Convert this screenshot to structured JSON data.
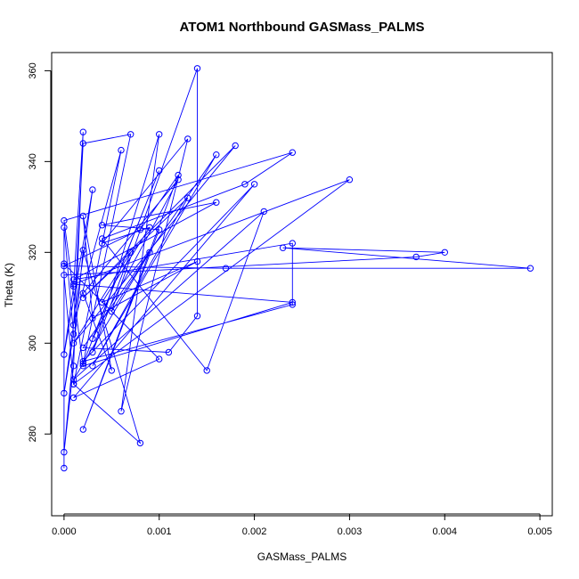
{
  "chart_data": {
    "type": "line",
    "title": "ATOM1 Northbound GASMass_PALMS",
    "xlabel": "GASMass_PALMS",
    "ylabel": "Theta (K)",
    "xlim": [
      -0.00013,
      0.00513
    ],
    "ylim": [
      262,
      364
    ],
    "x_ticks": [
      "0.000",
      "0.001",
      "0.002",
      "0.003",
      "0.004",
      "0.005"
    ],
    "x_tick_values": [
      0,
      0.001,
      0.002,
      0.003,
      0.004,
      0.005
    ],
    "y_ticks": [
      "280",
      "300",
      "320",
      "340",
      "360"
    ],
    "y_tick_values": [
      280,
      300,
      320,
      340,
      360
    ],
    "grid": false,
    "legend": "none",
    "color": "#0000ff",
    "series": [
      {
        "x": [
          0.0,
          0.0,
          0.0001,
          0.0,
          0.0003,
          0.0,
          0.0001,
          0.0002,
          0.0001,
          0.0,
          0.0002,
          0.0008,
          0.0001,
          0.0006,
          0.0001,
          0.0002,
          0.0007,
          0.0002,
          0.001,
          0.0003,
          0.0012,
          0.0002,
          0.0005,
          0.0002,
          0.0003,
          0.0014,
          0.0004,
          0.0009,
          0.0004,
          0.0013,
          0.0006,
          0.001,
          0.0003,
          0.0007,
          0.0001,
          0.0018,
          0.0002,
          0.0013,
          0.0003,
          0.0016,
          0.0002,
          0.0011,
          0.0014,
          0.0014,
          0.0005,
          0.0009,
          0.0001,
          0.0021,
          0.0015,
          0.0004,
          0.0019,
          0.0024,
          0.0,
          0.0002,
          0.0024,
          0.0001,
          0.003,
          0.0001,
          0.0,
          0.0037,
          0.004,
          0.0023,
          0.0049,
          0.0017,
          0.0,
          0.0008,
          0.0012,
          0.0002,
          0.001,
          0.0004,
          0.0016,
          0.0001,
          0.0024,
          0.0024,
          0.0002,
          0.002,
          0.0001,
          0.001,
          0.0
        ],
        "y": [
          272.5,
          325.5,
          302.0,
          289.0,
          333.8,
          297.5,
          312.5,
          346.5,
          295.0,
          276.0,
          320.5,
          278.0,
          291.0,
          342.5,
          304.0,
          344.0,
          346.0,
          295.5,
          338.0,
          301.0,
          336.0,
          311.0,
          294.0,
          328.0,
          305.5,
          318.0,
          309.0,
          325.5,
          322.0,
          345.0,
          285.0,
          346.0,
          298.0,
          320.0,
          300.0,
          343.5,
          310.0,
          332.0,
          295.0,
          341.5,
          299.0,
          298.0,
          306.0,
          360.5,
          307.0,
          320.0,
          292.0,
          329.0,
          294.0,
          323.0,
          335.0,
          342.0,
          327.0,
          295.0,
          309.0,
          313.0,
          336.0,
          291.0,
          315.0,
          319.0,
          320.0,
          321.0,
          316.5,
          316.5,
          317.0,
          325.0,
          337.0,
          281.0,
          325.0,
          326.0,
          331.0,
          314.0,
          322.0,
          308.5,
          296.0,
          335.0,
          288.0,
          296.5,
          317.5
        ]
      }
    ]
  }
}
